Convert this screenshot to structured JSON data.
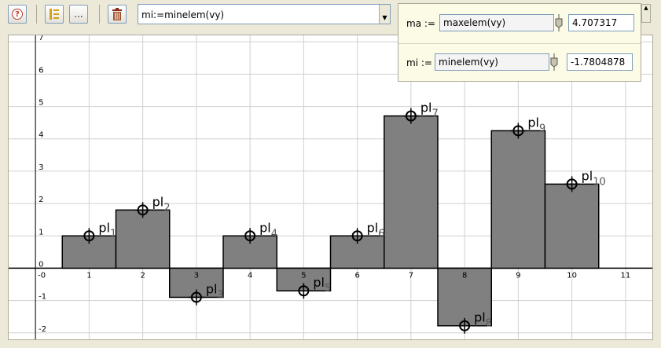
{
  "toolbar": {
    "command": "mi:=minelem(vy)",
    "more_label": "..."
  },
  "sliders": [
    {
      "label": "ma :=",
      "expr": "maxelem(vy)",
      "value": "4.707317"
    },
    {
      "label": "mi :=",
      "expr": "minelem(vy)",
      "value": "-1.7804878"
    }
  ],
  "chart_data": {
    "type": "bar",
    "categories": [
      1,
      2,
      3,
      4,
      5,
      6,
      7,
      8,
      9,
      10
    ],
    "values": [
      1,
      1.8,
      -0.9,
      1,
      -0.7,
      1,
      4.707317,
      -1.7804878,
      4.25,
      2.6
    ],
    "point_labels": [
      "pl1",
      "pl2",
      "pl3",
      "pl4",
      "pl5",
      "pl6",
      "pl7",
      "pl8",
      "pl9",
      "pl10"
    ],
    "x_ticks": [
      "-0",
      "1",
      "2",
      "3",
      "4",
      "5",
      "6",
      "7",
      "8",
      "9",
      "10",
      "11"
    ],
    "y_ticks": [
      "-2",
      "-1",
      "0",
      "1",
      "2",
      "3",
      "4",
      "5",
      "6",
      "7"
    ],
    "xlim": [
      -0.5,
      11.5
    ],
    "ylim": [
      -2.2,
      7.2
    ],
    "grid": true,
    "colors": {
      "bar": "#808080",
      "bar_stroke": "#000000",
      "grid": "#d0d0d0",
      "axis": "#000000"
    }
  }
}
